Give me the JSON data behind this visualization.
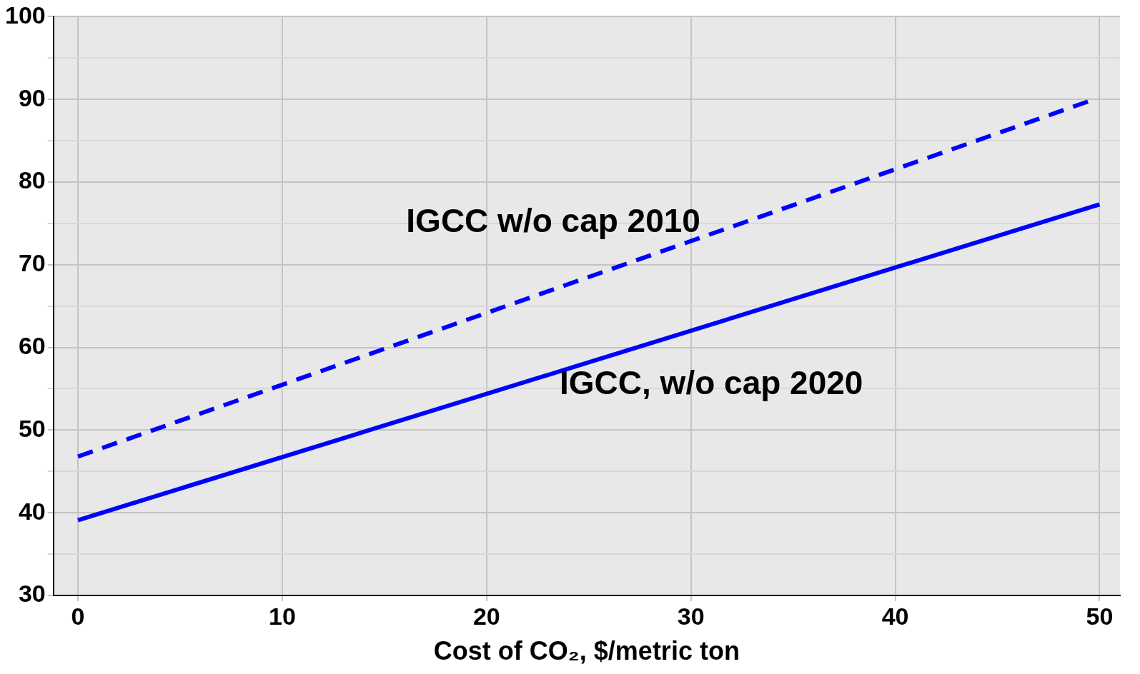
{
  "chart_data": {
    "type": "line",
    "xlabel": "Cost of CO₂, $/metric ton",
    "xlim": [
      -1.2,
      51
    ],
    "xticks": [
      0,
      10,
      20,
      30,
      40,
      50
    ],
    "ylim": [
      30,
      100
    ],
    "yticks": [
      30,
      {
        "value": 35,
        "label": null
      },
      40,
      {
        "value": 45,
        "label": null
      },
      50,
      {
        "value": 55,
        "label": null
      },
      60,
      {
        "value": 65,
        "label": null
      },
      70,
      {
        "value": 75,
        "label": null
      },
      80,
      {
        "value": 85,
        "label": null
      },
      90,
      {
        "value": 95,
        "label": null
      },
      100
    ],
    "grid": true,
    "legend": false,
    "marker": "none",
    "series": [
      {
        "name": "IGCC w/o cap 2010",
        "color": "#0000ff",
        "line_style": "dashed",
        "x": [
          0,
          49.5
        ],
        "values": [
          46.8,
          89.8
        ]
      },
      {
        "name": "IGCC, w/o cap 2020",
        "color": "#0000ff",
        "line_style": "solid",
        "x": [
          0,
          50
        ],
        "values": [
          39.1,
          77.3
        ]
      }
    ]
  }
}
